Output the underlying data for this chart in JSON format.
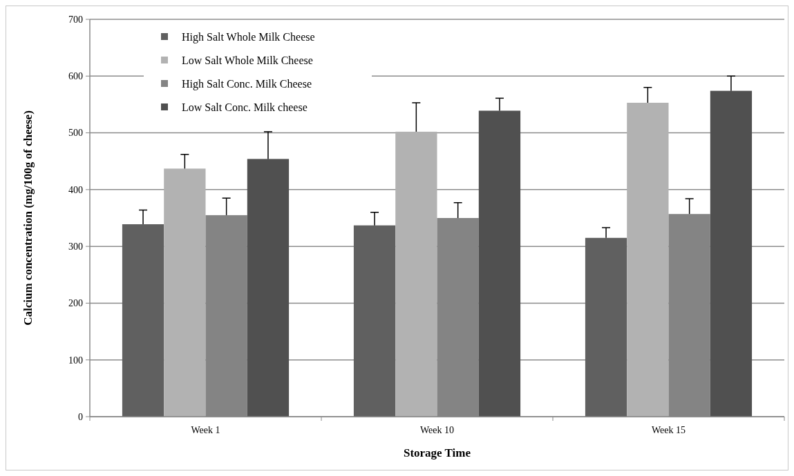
{
  "chart_data": {
    "type": "bar",
    "xlabel": "Storage Time",
    "ylabel": "Calcium concentration (mg/100g of cheese)",
    "categories": [
      "Week 1",
      "Week 10",
      "Week 15"
    ],
    "series": [
      {
        "name": "High Salt Whole Milk Cheese",
        "color": "#606060",
        "values": [
          339,
          337,
          315
        ],
        "errors": [
          [
            339,
            364
          ],
          [
            337,
            360
          ],
          [
            315,
            333
          ]
        ]
      },
      {
        "name": "Low Salt Whole Milk Cheese",
        "color": "#b2b2b2",
        "values": [
          437,
          502,
          553
        ],
        "errors": [
          [
            437,
            462
          ],
          [
            502,
            553
          ],
          [
            553,
            580
          ]
        ]
      },
      {
        "name": "High Salt Conc. Milk Cheese",
        "color": "#848484",
        "values": [
          355,
          350,
          357
        ],
        "errors": [
          [
            355,
            385
          ],
          [
            350,
            377
          ],
          [
            357,
            384
          ]
        ]
      },
      {
        "name": "Low Salt Conc. Milk cheese",
        "color": "#505050",
        "values": [
          454,
          539,
          574
        ],
        "errors": [
          [
            454,
            502
          ],
          [
            539,
            561
          ],
          [
            574,
            600
          ]
        ]
      }
    ],
    "ylim": [
      0,
      700
    ],
    "yticks": [
      0,
      100,
      200,
      300,
      400,
      500,
      600,
      700
    ],
    "grid": "y",
    "legend": "top left"
  }
}
